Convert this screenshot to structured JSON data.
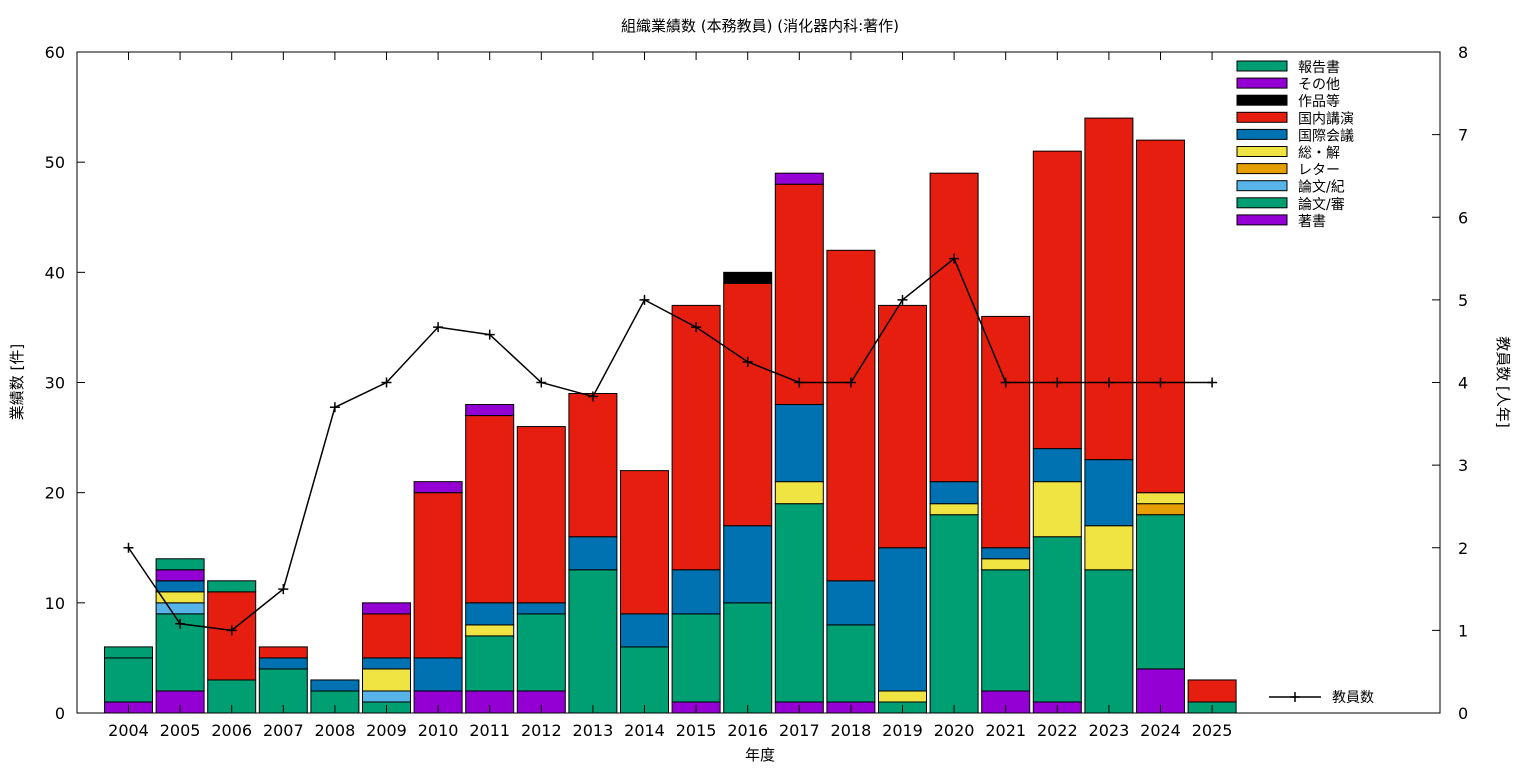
{
  "chart_data": {
    "type": "bar",
    "stacked": true,
    "title": "組織業績数 (本務教員) (消化器内科:著作)",
    "xlabel": "年度",
    "ylabel": "業績数 [件]",
    "y2label": "教員数 [人年]",
    "ylim": [
      0,
      60
    ],
    "y2lim": [
      0,
      8
    ],
    "yticks": [
      0,
      10,
      20,
      30,
      40,
      50,
      60
    ],
    "y2ticks": [
      0,
      1,
      2,
      3,
      4,
      5,
      6,
      7,
      8
    ],
    "grid": false,
    "legend_position": "top-right",
    "categories": [
      "2004",
      "2005",
      "2006",
      "2007",
      "2008",
      "2009",
      "2010",
      "2011",
      "2012",
      "2013",
      "2014",
      "2015",
      "2016",
      "2017",
      "2018",
      "2019",
      "2020",
      "2021",
      "2022",
      "2023",
      "2024",
      "2025"
    ],
    "series": [
      {
        "name": "著書",
        "color": "#9400D3",
        "values": [
          1,
          2,
          0,
          0,
          0,
          0,
          2,
          2,
          2,
          0,
          0,
          1,
          0,
          1,
          1,
          0,
          0,
          2,
          1,
          0,
          4,
          0
        ]
      },
      {
        "name": "論文/審",
        "color": "#009E73",
        "values": [
          4,
          7,
          3,
          4,
          2,
          1,
          0,
          5,
          7,
          13,
          6,
          8,
          10,
          18,
          7,
          1,
          18,
          11,
          15,
          13,
          14,
          1
        ]
      },
      {
        "name": "論文/紀",
        "color": "#56B4E9",
        "values": [
          0,
          1,
          0,
          0,
          0,
          1,
          0,
          0,
          0,
          0,
          0,
          0,
          0,
          0,
          0,
          0,
          0,
          0,
          0,
          0,
          0,
          0
        ]
      },
      {
        "name": "レター",
        "color": "#E69F00",
        "values": [
          0,
          0,
          0,
          0,
          0,
          0,
          0,
          0,
          0,
          0,
          0,
          0,
          0,
          0,
          0,
          0,
          0,
          0,
          0,
          0,
          1,
          0
        ]
      },
      {
        "name": "総・解",
        "color": "#F0E442",
        "values": [
          0,
          1,
          0,
          0,
          0,
          2,
          0,
          1,
          0,
          0,
          0,
          0,
          0,
          2,
          0,
          1,
          1,
          1,
          5,
          4,
          1,
          0
        ]
      },
      {
        "name": "国際会議",
        "color": "#0072B2",
        "values": [
          0,
          1,
          0,
          1,
          1,
          1,
          3,
          2,
          1,
          3,
          3,
          4,
          7,
          7,
          4,
          13,
          2,
          1,
          3,
          6,
          0,
          0
        ]
      },
      {
        "name": "国内講演",
        "color": "#E51E10",
        "values": [
          0,
          0,
          8,
          1,
          0,
          4,
          15,
          17,
          16,
          13,
          13,
          24,
          22,
          20,
          30,
          22,
          28,
          21,
          27,
          31,
          32,
          2
        ]
      },
      {
        "name": "作品等",
        "color": "#000000",
        "values": [
          0,
          0,
          0,
          0,
          0,
          0,
          0,
          0,
          0,
          0,
          0,
          0,
          1,
          0,
          0,
          0,
          0,
          0,
          0,
          0,
          0,
          0
        ]
      },
      {
        "name": "その他",
        "color": "#9400D3",
        "values": [
          0,
          1,
          0,
          0,
          0,
          1,
          1,
          1,
          0,
          0,
          0,
          0,
          0,
          1,
          0,
          0,
          0,
          0,
          0,
          0,
          0,
          0
        ]
      },
      {
        "name": "報告書",
        "color": "#009E73",
        "values": [
          1,
          1,
          1,
          0,
          0,
          0,
          0,
          0,
          0,
          0,
          0,
          0,
          0,
          0,
          0,
          0,
          0,
          0,
          0,
          0,
          0,
          0
        ]
      }
    ],
    "line_series": {
      "name": "教員数",
      "axis": "right",
      "color": "#000000",
      "x": [
        "2004",
        "2005",
        "2006",
        "2007",
        "2008",
        "2009",
        "2010",
        "2011",
        "2012",
        "2013",
        "2014",
        "2015",
        "2016",
        "2017",
        "2018",
        "2019",
        "2020",
        "2021",
        "2022",
        "2023",
        "2024",
        "2025"
      ],
      "values": [
        2.0,
        1.08,
        1.0,
        1.5,
        3.7,
        4.0,
        4.67,
        4.58,
        4.0,
        3.83,
        5.0,
        4.67,
        4.25,
        4.0,
        4.0,
        5.0,
        5.5,
        4.0,
        4.0,
        4.0,
        4.0,
        4.0
      ]
    },
    "legend_order": [
      "報告書",
      "その他",
      "作品等",
      "国内講演",
      "国際会議",
      "総・解",
      "レター",
      "論文/紀",
      "論文/審",
      "著書"
    ]
  }
}
